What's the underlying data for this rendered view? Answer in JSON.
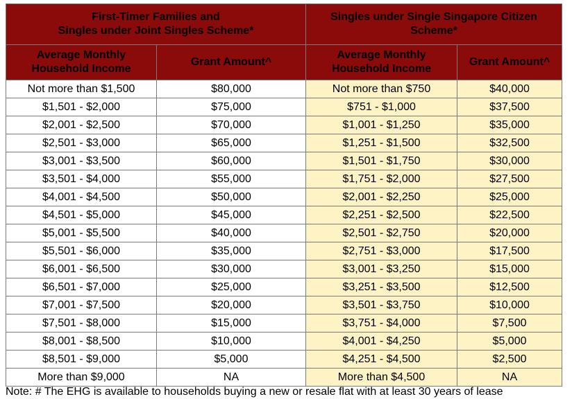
{
  "header": {
    "group1": "First-Timer Families and\nSingles under Joint Singles Scheme*",
    "group2": "Singles under Single Singapore Citizen\nScheme*",
    "income1": "Average Monthly\nHousehold Income",
    "grant1": "Grant Amount^",
    "income2": "Average Monthly\nHousehold Income",
    "grant2": "Grant Amount^"
  },
  "rows": [
    {
      "income1": "Not more than $1,500",
      "grant1": "$80,000",
      "income2": "Not more than $750",
      "grant2": "$40,000"
    },
    {
      "income1": "$1,501 - $2,000",
      "grant1": "$75,000",
      "income2": "$751 - $1,000",
      "grant2": "$37,500"
    },
    {
      "income1": "$2,001 - $2,500",
      "grant1": "$70,000",
      "income2": "$1,001 - $1,250",
      "grant2": "$35,000"
    },
    {
      "income1": "$2,501 - $3,000",
      "grant1": "$65,000",
      "income2": "$1,251 - $1,500",
      "grant2": "$32,500"
    },
    {
      "income1": "$3,001 - $3,500",
      "grant1": "$60,000",
      "income2": "$1,501 - $1,750",
      "grant2": "$30,000"
    },
    {
      "income1": "$3,501 - $4,000",
      "grant1": "$55,000",
      "income2": "$1,751 - $2,000",
      "grant2": "$27,500"
    },
    {
      "income1": "$4,001 - $4,500",
      "grant1": "$50,000",
      "income2": "$2,001 - $2,250",
      "grant2": "$25,000"
    },
    {
      "income1": "$4,501 - $5,000",
      "grant1": "$45,000",
      "income2": "$2,251 - $2,500",
      "grant2": "$22,500"
    },
    {
      "income1": "$5,001 - $5,500",
      "grant1": "$40,000",
      "income2": "$2,501 - $2,750",
      "grant2": "$20,000"
    },
    {
      "income1": "$5,501 - $6,000",
      "grant1": "$35,000",
      "income2": "$2,751 - $3,000",
      "grant2": "$17,500"
    },
    {
      "income1": "$6,001 - $6,500",
      "grant1": "$30,000",
      "income2": "$3,001 - $3,250",
      "grant2": "$15,000"
    },
    {
      "income1": "$6,501 - $7,000",
      "grant1": "$25,000",
      "income2": "$3,251 - $3,500",
      "grant2": "$12,500"
    },
    {
      "income1": "$7,001 - $7,500",
      "grant1": "$20,000",
      "income2": "$3,501 - $3,750",
      "grant2": "$10,000"
    },
    {
      "income1": "$7,501 - $8,000",
      "grant1": "$15,000",
      "income2": "$3,751 - $4,000",
      "grant2": "$7,500"
    },
    {
      "income1": "$8,001 - $8,500",
      "grant1": "$10,000",
      "income2": "$4,001 - $4,250",
      "grant2": "$5,000"
    },
    {
      "income1": "$8,501 - $9,000",
      "grant1": "$5,000",
      "income2": "$4,251 - $4,500",
      "grant2": "$2,500"
    },
    {
      "income1": "More than $9,000",
      "grant1": "NA",
      "income2": "More than $4,500",
      "grant2": "NA"
    }
  ],
  "colors": {
    "header_bg": "#8b0a0a",
    "highlight_bg": "#fdf3c5"
  },
  "note": "Note: # The EHG is available to households buying a new or resale flat with at least 30 years of lease"
}
